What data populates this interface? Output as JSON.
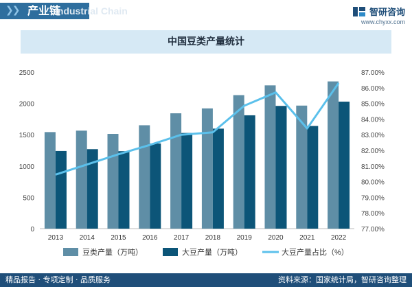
{
  "header": {
    "title": "产业链",
    "ghost_text": "Industrial Chain",
    "brand_name": "智研咨询",
    "brand_url": "www.chyxx.com"
  },
  "chart_data": {
    "type": "bar",
    "title": "中国豆类产量统计",
    "categories": [
      "2013",
      "2014",
      "2015",
      "2016",
      "2017",
      "2018",
      "2019",
      "2020",
      "2021",
      "2022"
    ],
    "series": [
      {
        "name": "豆类产量（万吨）",
        "type": "bar",
        "axis": "left",
        "color": "#5f8ea6",
        "values": [
          1542,
          1565,
          1513,
          1651,
          1842,
          1920,
          2132,
          2288,
          1965,
          2351
        ]
      },
      {
        "name": "大豆产量（万吨）",
        "type": "bar",
        "axis": "left",
        "color": "#0c5578",
        "values": [
          1240,
          1269,
          1237,
          1360,
          1528,
          1597,
          1810,
          1960,
          1640,
          2028
        ]
      },
      {
        "name": "大豆产量占比（%）",
        "type": "line",
        "axis": "right",
        "color": "#5bc0eb",
        "values": [
          80.45,
          81.1,
          81.75,
          82.35,
          83.0,
          83.15,
          84.85,
          85.7,
          83.4,
          86.3
        ]
      }
    ],
    "y_left": {
      "min": 0,
      "max": 2500,
      "ticks": [
        "0",
        "500",
        "1000",
        "1500",
        "2000",
        "2500"
      ]
    },
    "y_right": {
      "min": 77,
      "max": 87,
      "ticks": [
        "77.00%",
        "78.00%",
        "79.00%",
        "80.00%",
        "81.00%",
        "82.00%",
        "83.00%",
        "84.00%",
        "85.00%",
        "86.00%",
        "87.00%"
      ]
    },
    "grid": false,
    "legend_position": "bottom"
  },
  "footer": {
    "left_text": "精品报告 · 专项定制 · 品质服务",
    "right_text": "资料来源：国家统计局，智研咨询整理"
  },
  "colors": {
    "header_bar": "#2e6e9e",
    "title_box": "#d6e9f5",
    "footer_bar": "#1f4e79"
  }
}
